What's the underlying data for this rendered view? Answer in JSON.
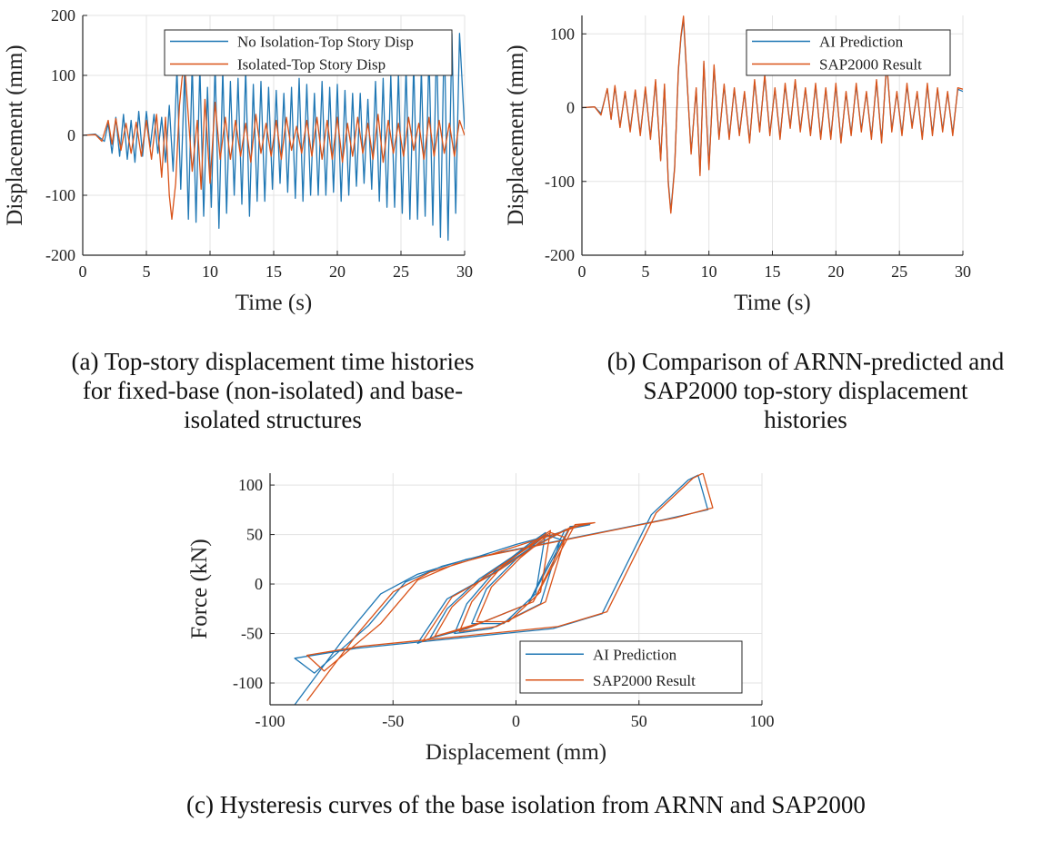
{
  "colors": {
    "blue": "#1f77b4",
    "orange": "#d95319",
    "grid": "#e3e3e3",
    "axis": "#262626"
  },
  "captions": {
    "a": [
      "(a)  Top-story displacement time histories",
      "for fixed-base (non-isolated) and base-",
      "isolated structures"
    ],
    "b": [
      "(b)  Comparison of ARNN-predicted and",
      "SAP2000 top-story displacement",
      "histories"
    ],
    "c": [
      "(c)  Hysteresis curves of the base isolation from ARNN and SAP2000"
    ]
  },
  "chart_data": [
    {
      "id": "a",
      "type": "line",
      "xlabel": "Time (s)",
      "ylabel": "Displacement (mm)",
      "xlim": [
        0,
        30
      ],
      "ylim": [
        -200,
        200
      ],
      "xticks": [
        0,
        5,
        10,
        15,
        20,
        25,
        30
      ],
      "yticks": [
        -200,
        -100,
        0,
        100,
        200
      ],
      "grid": true,
      "legend_position": "top-right",
      "series": [
        {
          "name": "No Isolation-Top Story Disp",
          "color": "blue",
          "x": [
            0,
            1,
            1.7,
            2.0,
            2.3,
            2.6,
            2.9,
            3.2,
            3.5,
            3.8,
            4.1,
            4.4,
            4.7,
            5.0,
            5.3,
            5.6,
            5.9,
            6.2,
            6.5,
            6.8,
            7.1,
            7.4,
            7.7,
            8.0,
            8.3,
            8.6,
            8.9,
            9.2,
            9.5,
            9.8,
            10.1,
            10.4,
            10.7,
            11.0,
            11.3,
            11.6,
            11.9,
            12.2,
            12.5,
            12.8,
            13.1,
            13.4,
            13.7,
            14.0,
            14.3,
            14.6,
            14.9,
            15.2,
            15.5,
            15.8,
            16.1,
            16.4,
            16.7,
            17.0,
            17.3,
            17.6,
            17.9,
            18.2,
            18.5,
            18.8,
            19.1,
            19.4,
            19.7,
            20.0,
            20.3,
            20.6,
            20.9,
            21.2,
            21.5,
            21.8,
            22.1,
            22.4,
            22.7,
            23.0,
            23.3,
            23.6,
            23.9,
            24.2,
            24.5,
            24.8,
            25.1,
            25.4,
            25.7,
            26.0,
            26.3,
            26.6,
            26.9,
            27.2,
            27.5,
            27.8,
            28.1,
            28.4,
            28.7,
            29.0,
            29.3,
            29.6,
            30.0
          ],
          "y": [
            0,
            2,
            -10,
            20,
            -30,
            30,
            -35,
            35,
            -40,
            25,
            -45,
            40,
            -35,
            40,
            -20,
            35,
            -30,
            30,
            -45,
            50,
            -60,
            110,
            -90,
            105,
            -140,
            120,
            -145,
            115,
            -135,
            80,
            -120,
            120,
            -155,
            110,
            -130,
            90,
            -100,
            95,
            -115,
            110,
            -135,
            85,
            -110,
            90,
            -110,
            80,
            -90,
            75,
            -80,
            70,
            -95,
            80,
            -105,
            95,
            -110,
            85,
            -100,
            70,
            -100,
            90,
            -100,
            80,
            -95,
            85,
            -110,
            75,
            -100,
            70,
            -85,
            70,
            -80,
            60,
            -90,
            90,
            -110,
            95,
            -120,
            100,
            -120,
            105,
            -130,
            115,
            -140,
            120,
            -140,
            110,
            -135,
            140,
            -150,
            165,
            -170,
            175,
            -175,
            170,
            -130,
            170,
            10
          ]
        },
        {
          "name": "Isolated-Top Story Disp",
          "color": "orange",
          "x": [
            0,
            1,
            1.5,
            2.0,
            2.3,
            2.6,
            3.0,
            3.4,
            3.8,
            4.2,
            4.6,
            5.0,
            5.4,
            5.8,
            6.2,
            6.5,
            6.8,
            7.0,
            7.3,
            7.6,
            7.8,
            8.0,
            8.3,
            8.6,
            9.0,
            9.3,
            9.6,
            10.0,
            10.4,
            10.8,
            11.2,
            11.6,
            12.0,
            12.4,
            12.8,
            13.2,
            13.6,
            14.0,
            14.4,
            14.8,
            15.2,
            15.6,
            16.0,
            16.4,
            16.8,
            17.2,
            17.6,
            18.0,
            18.4,
            18.8,
            19.2,
            19.6,
            20.0,
            20.4,
            20.8,
            21.2,
            21.6,
            22.0,
            22.4,
            22.8,
            23.2,
            23.6,
            24.0,
            24.4,
            24.8,
            25.2,
            25.6,
            26.0,
            26.4,
            26.8,
            27.2,
            27.6,
            28.0,
            28.4,
            28.8,
            29.2,
            29.6,
            30.0
          ],
          "y": [
            0,
            1,
            -10,
            25,
            -15,
            28,
            -25,
            20,
            -30,
            22,
            -35,
            25,
            -40,
            35,
            -70,
            30,
            -100,
            -140,
            -80,
            50,
            95,
            120,
            30,
            -60,
            25,
            -90,
            60,
            -80,
            55,
            -40,
            30,
            -40,
            25,
            -35,
            20,
            -45,
            35,
            -30,
            20,
            -35,
            25,
            -40,
            30,
            -25,
            15,
            -30,
            25,
            -35,
            30,
            -40,
            25,
            -40,
            30,
            -45,
            20,
            -35,
            30,
            -30,
            20,
            -40,
            35,
            -45,
            25,
            -30,
            20,
            -35,
            30,
            -25,
            20,
            -40,
            30,
            -35,
            25,
            -30,
            20,
            -35,
            25,
            0
          ]
        }
      ]
    },
    {
      "id": "b",
      "type": "line",
      "xlabel": "Time (s)",
      "ylabel": "Displacement (mm)",
      "xlim": [
        0,
        30
      ],
      "ylim": [
        -200,
        125
      ],
      "xticks": [
        0,
        5,
        10,
        15,
        20,
        25,
        30
      ],
      "yticks": [
        -200,
        -100,
        0,
        100
      ],
      "grid": true,
      "legend_position": "top-right",
      "series": [
        {
          "name": "AI Prediction",
          "color": "blue",
          "x": [
            0,
            1,
            1.5,
            2.0,
            2.3,
            2.6,
            3.0,
            3.4,
            3.8,
            4.2,
            4.6,
            5.0,
            5.4,
            5.8,
            6.2,
            6.5,
            6.8,
            7.0,
            7.3,
            7.6,
            7.8,
            8.0,
            8.3,
            8.6,
            9.0,
            9.3,
            9.6,
            10.0,
            10.4,
            10.8,
            11.2,
            11.6,
            12.0,
            12.4,
            12.8,
            13.2,
            13.6,
            14.0,
            14.4,
            14.8,
            15.2,
            15.6,
            16.0,
            16.4,
            16.8,
            17.2,
            17.6,
            18.0,
            18.4,
            18.8,
            19.2,
            19.6,
            20.0,
            20.4,
            20.8,
            21.2,
            21.6,
            22.0,
            22.4,
            22.8,
            23.2,
            23.6,
            24.0,
            24.4,
            24.8,
            25.2,
            25.6,
            26.0,
            26.4,
            26.8,
            27.2,
            27.6,
            28.0,
            28.4,
            28.8,
            29.2,
            29.6,
            30.0
          ],
          "y": [
            0,
            1,
            -8,
            25,
            -15,
            28,
            -25,
            20,
            -30,
            22,
            -35,
            25,
            -40,
            35,
            -70,
            30,
            -100,
            -140,
            -80,
            50,
            95,
            120,
            30,
            -60,
            25,
            -88,
            60,
            -80,
            55,
            -40,
            30,
            -40,
            25,
            -35,
            20,
            -45,
            35,
            -30,
            42,
            -35,
            25,
            -40,
            30,
            -25,
            35,
            -30,
            25,
            -35,
            30,
            -40,
            25,
            -40,
            30,
            -45,
            20,
            -35,
            30,
            -30,
            20,
            -40,
            35,
            -45,
            60,
            -30,
            20,
            -35,
            30,
            -25,
            20,
            -40,
            30,
            -35,
            25,
            -30,
            20,
            -35,
            25,
            22
          ]
        },
        {
          "name": "SAP2000 Result",
          "color": "orange",
          "x": [
            0,
            1,
            1.5,
            2.0,
            2.3,
            2.6,
            3.0,
            3.4,
            3.8,
            4.2,
            4.6,
            5.0,
            5.4,
            5.8,
            6.2,
            6.5,
            6.8,
            7.0,
            7.3,
            7.6,
            7.8,
            8.0,
            8.3,
            8.6,
            9.0,
            9.3,
            9.6,
            10.0,
            10.4,
            10.8,
            11.2,
            11.6,
            12.0,
            12.4,
            12.8,
            13.2,
            13.6,
            14.0,
            14.4,
            14.8,
            15.2,
            15.6,
            16.0,
            16.4,
            16.8,
            17.2,
            17.6,
            18.0,
            18.4,
            18.8,
            19.2,
            19.6,
            20.0,
            20.4,
            20.8,
            21.2,
            21.6,
            22.0,
            22.4,
            22.8,
            23.2,
            23.6,
            24.0,
            24.4,
            24.8,
            25.2,
            25.6,
            26.0,
            26.4,
            26.8,
            27.2,
            27.6,
            28.0,
            28.4,
            28.8,
            29.2,
            29.6,
            30.0
          ],
          "y": [
            0,
            1,
            -10,
            26,
            -16,
            30,
            -27,
            22,
            -33,
            24,
            -38,
            28,
            -43,
            38,
            -72,
            32,
            -103,
            -143,
            -82,
            52,
            97,
            124,
            32,
            -63,
            27,
            -92,
            63,
            -84,
            58,
            -43,
            32,
            -43,
            27,
            -38,
            22,
            -48,
            38,
            -33,
            45,
            -38,
            27,
            -43,
            33,
            -28,
            38,
            -33,
            27,
            -38,
            33,
            -43,
            27,
            -43,
            33,
            -48,
            22,
            -38,
            33,
            -33,
            22,
            -43,
            38,
            -48,
            63,
            -33,
            22,
            -38,
            33,
            -28,
            22,
            -43,
            33,
            -38,
            27,
            -33,
            22,
            -38,
            27,
            25
          ]
        }
      ]
    },
    {
      "id": "c",
      "type": "line",
      "xlabel": "Displacement (mm)",
      "ylabel": "Force (kN)",
      "xlim": [
        -100,
        100
      ],
      "ylim": [
        -122,
        112
      ],
      "xticks": [
        -100,
        -50,
        0,
        50,
        100
      ],
      "yticks": [
        -100,
        -50,
        0,
        50,
        100
      ],
      "grid": true,
      "legend_position": "bottom-right",
      "series": [
        {
          "name": "AI Prediction",
          "color": "blue",
          "x": [
            -90,
            -70,
            -55,
            -40,
            -20,
            0,
            20,
            40,
            60,
            78,
            74,
            70,
            55,
            35,
            15,
            -5,
            -25,
            -45,
            -65,
            -90,
            -82,
            -60,
            -45,
            -30,
            -15,
            0,
            15,
            25,
            20,
            5,
            -15,
            -35,
            -40,
            -28,
            -10,
            5,
            20,
            30,
            22,
            5,
            -20,
            -35,
            -28,
            -15,
            0,
            12,
            18,
            10,
            -10,
            -25,
            -20,
            -8,
            5,
            12,
            8,
            -5,
            -18,
            -12,
            0,
            10
          ],
          "y": [
            -122,
            -55,
            -10,
            10,
            25,
            35,
            45,
            55,
            65,
            75,
            110,
            105,
            70,
            -30,
            -45,
            -50,
            -55,
            -60,
            -65,
            -75,
            -90,
            -42,
            2,
            18,
            28,
            40,
            50,
            58,
            55,
            -20,
            -40,
            -55,
            -60,
            -15,
            10,
            35,
            55,
            60,
            58,
            -20,
            -45,
            -55,
            -25,
            5,
            30,
            50,
            45,
            -20,
            -45,
            -50,
            -20,
            15,
            40,
            52,
            -10,
            -40,
            -40,
            -5,
            25,
            45
          ]
        },
        {
          "name": "SAP2000 Result",
          "color": "orange",
          "x": [
            -85,
            -65,
            -50,
            -35,
            -15,
            5,
            25,
            45,
            65,
            80,
            76,
            72,
            57,
            37,
            17,
            -3,
            -23,
            -43,
            -63,
            -85,
            -78,
            -55,
            -40,
            -25,
            -10,
            5,
            18,
            27,
            22,
            7,
            -13,
            -33,
            -38,
            -26,
            -8,
            7,
            22,
            32,
            24,
            7,
            -18,
            -33,
            -26,
            -13,
            2,
            14,
            20,
            12,
            -8,
            -23,
            -18,
            -6,
            7,
            14,
            10,
            -3,
            -16,
            -10,
            2,
            12
          ],
          "y": [
            -118,
            -52,
            -8,
            12,
            27,
            37,
            47,
            57,
            67,
            77,
            112,
            107,
            72,
            -28,
            -43,
            -48,
            -53,
            -58,
            -63,
            -72,
            -88,
            -40,
            4,
            20,
            30,
            42,
            52,
            60,
            57,
            -18,
            -38,
            -53,
            -58,
            -13,
            12,
            37,
            57,
            62,
            60,
            -18,
            -43,
            -53,
            -23,
            7,
            32,
            52,
            47,
            -18,
            -43,
            -48,
            -18,
            17,
            42,
            54,
            -8,
            -38,
            -38,
            -3,
            27,
            47
          ]
        }
      ]
    }
  ]
}
